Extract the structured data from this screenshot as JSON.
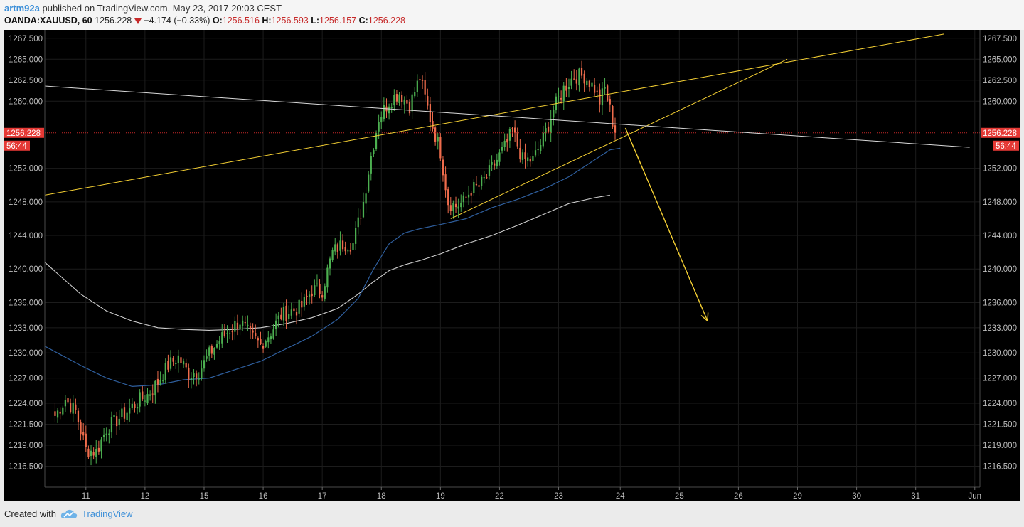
{
  "header": {
    "author": "artm92a",
    "published_text": " published on TradingView.com, May 23, 2017 20:03 CEST",
    "symbol": "OANDA:XAUUSD, 60",
    "price": "1256.228",
    "change": "−4.174 (−0.33%)",
    "o_label": "O:",
    "o_value": "1256.516",
    "h_label": "H:",
    "h_value": "1256.593",
    "l_label": "L:",
    "l_value": "1256.157",
    "c_label": "C:",
    "c_value": "1256.228"
  },
  "footer": {
    "created_with": "Created with",
    "brand": "TradingView"
  },
  "colors": {
    "background": "#000000",
    "up_candle": "#4caf50",
    "down_candle": "#ef6c4c",
    "ma_fast": "#2f5f9e",
    "ma_slow": "#cfcfcf",
    "trendline": "#f5d033",
    "price_label": "#e53935",
    "author": "#3c8fd8"
  },
  "chart_data": {
    "type": "candlestick",
    "symbol": "OANDA:XAUUSD",
    "interval": "60",
    "ylim": [
      1214.0,
      1268.5
    ],
    "y_ticks": [
      "1267.500",
      "1265.000",
      "1262.500",
      "1260.000",
      "1256.228",
      "1252.000",
      "1248.000",
      "1244.000",
      "1240.000",
      "1236.000",
      "1233.000",
      "1230.000",
      "1227.000",
      "1224.000",
      "1221.500",
      "1219.000",
      "1216.500"
    ],
    "y_tick_values": [
      1267.5,
      1265.0,
      1262.5,
      1260.0,
      1256.228,
      1252.0,
      1248.0,
      1244.0,
      1240.0,
      1236.0,
      1233.0,
      1230.0,
      1227.0,
      1224.0,
      1221.5,
      1219.0,
      1216.5
    ],
    "x_ticks": [
      "11",
      "12",
      "15",
      "16",
      "17",
      "18",
      "19",
      "22",
      "23",
      "24",
      "25",
      "26",
      "29",
      "30",
      "31",
      "Jun"
    ],
    "x_tick_index": [
      12,
      35,
      58,
      81,
      104,
      127,
      150,
      173,
      196,
      220,
      243,
      266,
      289,
      312,
      335,
      358
    ],
    "x_range": [
      -4,
      360
    ],
    "current_price": 1256.228,
    "current_price_label": "1256.228",
    "countdown_label": "56:44",
    "close_anchors": [
      [
        0,
        1222.5
      ],
      [
        4,
        1224.5
      ],
      [
        8,
        1223.0
      ],
      [
        12,
        1218.5
      ],
      [
        16,
        1218.2
      ],
      [
        20,
        1221.0
      ],
      [
        24,
        1222.0
      ],
      [
        28,
        1223.0
      ],
      [
        32,
        1224.2
      ],
      [
        36,
        1225.0
      ],
      [
        40,
        1226.5
      ],
      [
        44,
        1228.5
      ],
      [
        48,
        1229.5
      ],
      [
        52,
        1227.5
      ],
      [
        56,
        1227.8
      ],
      [
        60,
        1229.8
      ],
      [
        64,
        1231.5
      ],
      [
        68,
        1232.8
      ],
      [
        72,
        1233.8
      ],
      [
        76,
        1232.0
      ],
      [
        80,
        1231.0
      ],
      [
        84,
        1232.5
      ],
      [
        88,
        1234.5
      ],
      [
        92,
        1235.0
      ],
      [
        96,
        1235.5
      ],
      [
        100,
        1237.5
      ],
      [
        104,
        1237.5
      ],
      [
        108,
        1242.0
      ],
      [
        112,
        1243.0
      ],
      [
        116,
        1243.0
      ],
      [
        120,
        1248.0
      ],
      [
        123,
        1253.5
      ],
      [
        126,
        1258.0
      ],
      [
        130,
        1260.0
      ],
      [
        134,
        1261.0
      ],
      [
        138,
        1259.5
      ],
      [
        142,
        1262.8
      ],
      [
        146,
        1258.0
      ],
      [
        150,
        1254.0
      ],
      [
        153,
        1248.0
      ],
      [
        156,
        1247.5
      ],
      [
        159,
        1248.0
      ],
      [
        162,
        1249.5
      ],
      [
        165,
        1249.8
      ],
      [
        168,
        1251.0
      ],
      [
        172,
        1253.0
      ],
      [
        176,
        1255.0
      ],
      [
        178,
        1256.5
      ],
      [
        182,
        1253.0
      ],
      [
        186,
        1253.0
      ],
      [
        190,
        1255.5
      ],
      [
        194,
        1259.0
      ],
      [
        198,
        1261.5
      ],
      [
        202,
        1263.0
      ],
      [
        206,
        1263.0
      ],
      [
        210,
        1261.5
      ],
      [
        212,
        1260.0
      ],
      [
        214,
        1261.5
      ],
      [
        216,
        1259.0
      ],
      [
        218,
        1256.2
      ]
    ],
    "ma_fast": [
      [
        -4,
        1230.8
      ],
      [
        10,
        1228.5
      ],
      [
        20,
        1227.0
      ],
      [
        30,
        1226.0
      ],
      [
        40,
        1226.2
      ],
      [
        50,
        1226.8
      ],
      [
        60,
        1227.0
      ],
      [
        70,
        1228.0
      ],
      [
        80,
        1229.0
      ],
      [
        90,
        1230.5
      ],
      [
        100,
        1232.0
      ],
      [
        110,
        1234.0
      ],
      [
        118,
        1236.5
      ],
      [
        124,
        1240.0
      ],
      [
        130,
        1243.0
      ],
      [
        136,
        1244.3
      ],
      [
        142,
        1244.8
      ],
      [
        150,
        1245.3
      ],
      [
        160,
        1246.0
      ],
      [
        170,
        1247.3
      ],
      [
        180,
        1248.3
      ],
      [
        190,
        1249.5
      ],
      [
        200,
        1251.0
      ],
      [
        210,
        1253.0
      ],
      [
        216,
        1254.2
      ],
      [
        220,
        1254.4
      ]
    ],
    "ma_slow": [
      [
        -4,
        1240.8
      ],
      [
        10,
        1237.0
      ],
      [
        20,
        1235.0
      ],
      [
        30,
        1233.8
      ],
      [
        40,
        1233.0
      ],
      [
        50,
        1232.8
      ],
      [
        60,
        1232.7
      ],
      [
        70,
        1232.8
      ],
      [
        80,
        1233.0
      ],
      [
        90,
        1233.5
      ],
      [
        100,
        1234.2
      ],
      [
        110,
        1235.3
      ],
      [
        118,
        1237.0
      ],
      [
        124,
        1238.5
      ],
      [
        130,
        1239.8
      ],
      [
        136,
        1240.5
      ],
      [
        142,
        1241.0
      ],
      [
        150,
        1241.8
      ],
      [
        160,
        1243.0
      ],
      [
        170,
        1244.0
      ],
      [
        180,
        1245.2
      ],
      [
        190,
        1246.5
      ],
      [
        200,
        1247.8
      ],
      [
        210,
        1248.5
      ],
      [
        216,
        1248.8
      ]
    ],
    "trendlines": [
      {
        "from": [
          -4,
          1248.8
        ],
        "to": [
          346,
          1268.0
        ],
        "color": "#f5d033"
      },
      {
        "from": [
          154,
          1246.0
        ],
        "to": [
          285,
          1265.0
        ],
        "color": "#f5d033"
      },
      {
        "from": [
          -4,
          1261.8
        ],
        "to": [
          356,
          1254.5
        ],
        "color": "#d9d9d9"
      }
    ],
    "arrow": {
      "from": [
        222,
        1256.8
      ],
      "to": [
        254,
        1233.8
      ],
      "color": "#f5d033"
    }
  }
}
